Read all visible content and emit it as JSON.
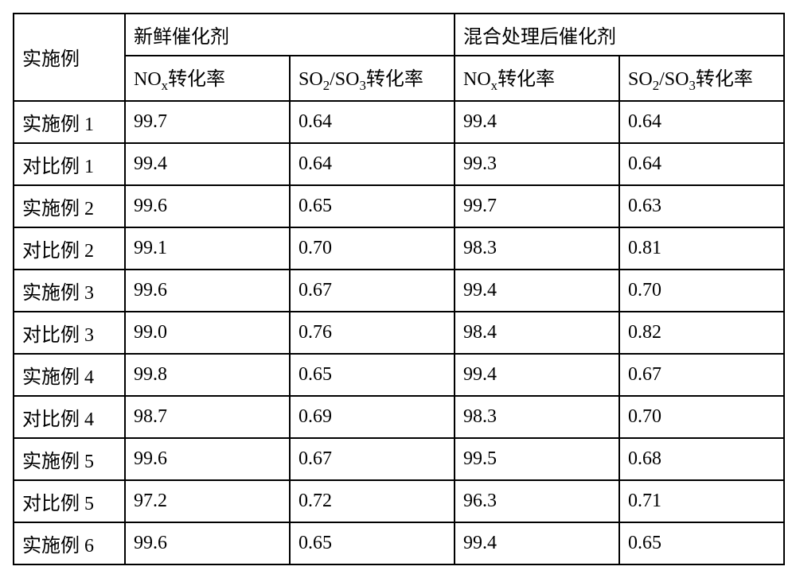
{
  "table": {
    "type": "table",
    "columns": {
      "row_label": "实施例",
      "group1": "新鲜催化剂",
      "group2": "混合处理后催化剂",
      "sub_nox_html": "NO<sub>x</sub>转化率",
      "sub_so2_html": "SO<sub>2</sub>/SO<sub>3</sub>转化率"
    },
    "rows": [
      {
        "label": "实施例 1",
        "g1_nox": "99.7",
        "g1_so2": "0.64",
        "g2_nox": "99.4",
        "g2_so2": "0.64"
      },
      {
        "label": "对比例 1",
        "g1_nox": "99.4",
        "g1_so2": "0.64",
        "g2_nox": "99.3",
        "g2_so2": "0.64"
      },
      {
        "label": "实施例 2",
        "g1_nox": "99.6",
        "g1_so2": "0.65",
        "g2_nox": "99.7",
        "g2_so2": "0.63"
      },
      {
        "label": "对比例 2",
        "g1_nox": "99.1",
        "g1_so2": "0.70",
        "g2_nox": "98.3",
        "g2_so2": "0.81"
      },
      {
        "label": "实施例 3",
        "g1_nox": "99.6",
        "g1_so2": "0.67",
        "g2_nox": "99.4",
        "g2_so2": "0.70"
      },
      {
        "label": "对比例 3",
        "g1_nox": "99.0",
        "g1_so2": "0.76",
        "g2_nox": "98.4",
        "g2_so2": "0.82"
      },
      {
        "label": "实施例 4",
        "g1_nox": "99.8",
        "g1_so2": "0.65",
        "g2_nox": "99.4",
        "g2_so2": "0.67"
      },
      {
        "label": "对比例 4",
        "g1_nox": "98.7",
        "g1_so2": "0.69",
        "g2_nox": "98.3",
        "g2_so2": "0.70"
      },
      {
        "label": "实施例 5",
        "g1_nox": "99.6",
        "g1_so2": "0.67",
        "g2_nox": "99.5",
        "g2_so2": "0.68"
      },
      {
        "label": "对比例 5",
        "g1_nox": "97.2",
        "g1_so2": "0.72",
        "g2_nox": "96.3",
        "g2_so2": "0.71"
      },
      {
        "label": "实施例 6",
        "g1_nox": "99.6",
        "g1_so2": "0.65",
        "g2_nox": "99.4",
        "g2_so2": "0.65"
      }
    ],
    "border_color": "#000000",
    "background_color": "#ffffff",
    "font_size_pt": 18,
    "cell_align": "left"
  }
}
